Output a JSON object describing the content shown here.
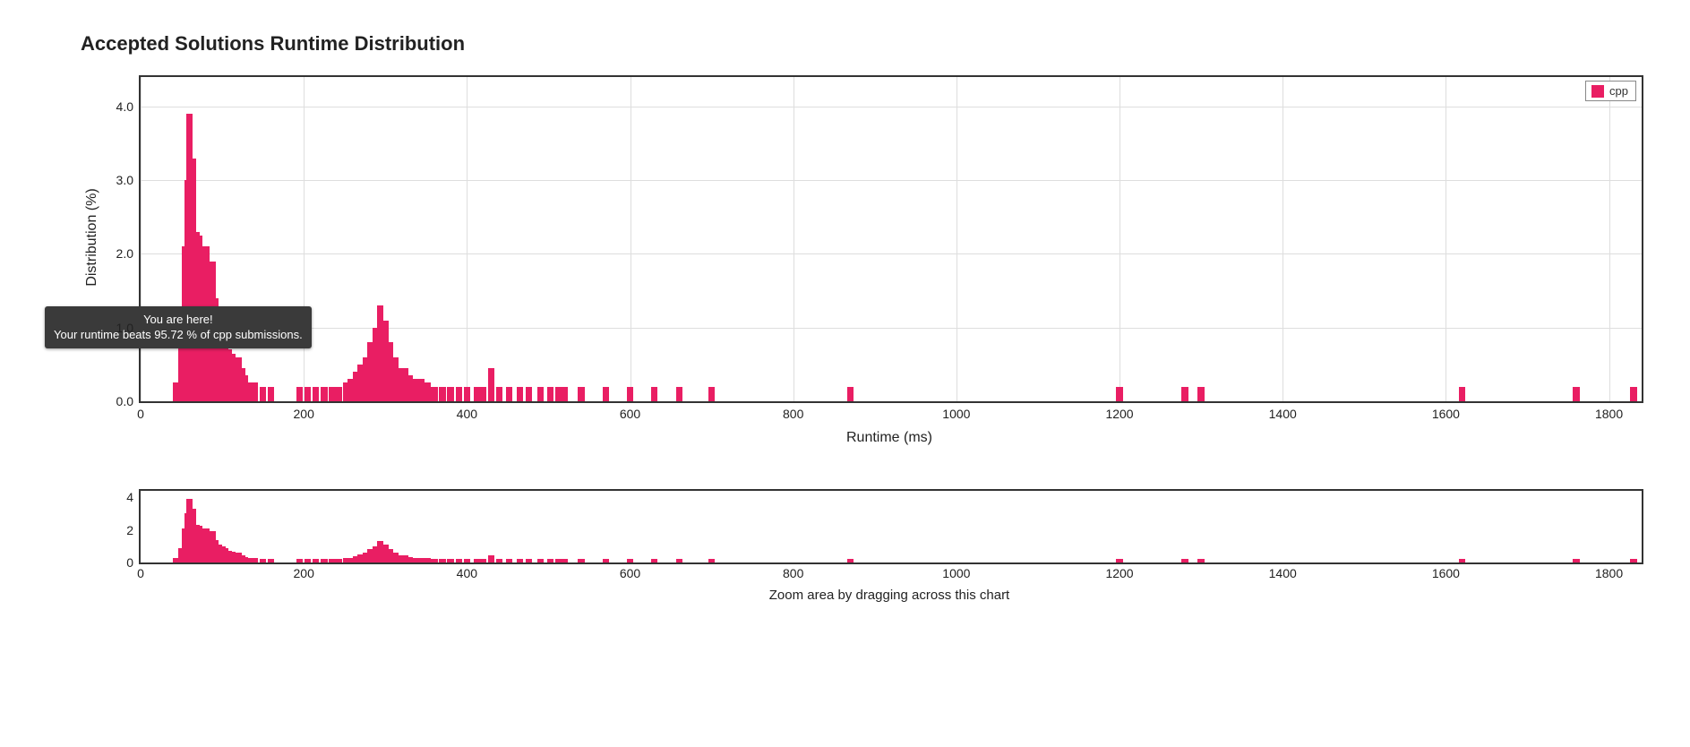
{
  "title": "Accepted Solutions Runtime Distribution",
  "tooltip": {
    "line1": "You are here!",
    "line2": "Your runtime beats 95.72 % of cpp submissions.",
    "at_runtime_ms": 60
  },
  "legend": {
    "label": "cpp",
    "swatch_color": "#e91e63"
  },
  "main_chart": {
    "type": "bar",
    "x_label": "Runtime (ms)",
    "y_label": "Distribution (%)",
    "xlim": [
      0,
      1840
    ],
    "ylim": [
      0,
      4.4
    ],
    "x_ticks": [
      0,
      200,
      400,
      600,
      800,
      1000,
      1200,
      1400,
      1600,
      1800
    ],
    "y_ticks": [
      0.0,
      1.0,
      2.0,
      3.0,
      4.0
    ],
    "grid_color": "#dedede",
    "border_color": "#333333",
    "bar_color": "#e91e63",
    "bar_width_ms": 8,
    "background_color": "#ffffff",
    "label_fontsize": 16,
    "tick_fontsize": 14,
    "data": [
      {
        "x": 44,
        "y": 0.25
      },
      {
        "x": 50,
        "y": 0.9
      },
      {
        "x": 54,
        "y": 2.1
      },
      {
        "x": 58,
        "y": 3.0
      },
      {
        "x": 60,
        "y": 3.9
      },
      {
        "x": 64,
        "y": 3.3
      },
      {
        "x": 68,
        "y": 2.3
      },
      {
        "x": 72,
        "y": 2.25
      },
      {
        "x": 76,
        "y": 1.7
      },
      {
        "x": 80,
        "y": 2.1
      },
      {
        "x": 84,
        "y": 1.5
      },
      {
        "x": 88,
        "y": 1.9
      },
      {
        "x": 92,
        "y": 1.4
      },
      {
        "x": 96,
        "y": 1.1
      },
      {
        "x": 100,
        "y": 1.0
      },
      {
        "x": 104,
        "y": 0.9
      },
      {
        "x": 108,
        "y": 0.7
      },
      {
        "x": 112,
        "y": 0.65
      },
      {
        "x": 116,
        "y": 0.5
      },
      {
        "x": 120,
        "y": 0.6
      },
      {
        "x": 124,
        "y": 0.45
      },
      {
        "x": 128,
        "y": 0.35
      },
      {
        "x": 132,
        "y": 0.25
      },
      {
        "x": 140,
        "y": 0.25
      },
      {
        "x": 150,
        "y": 0.2
      },
      {
        "x": 160,
        "y": 0.2
      },
      {
        "x": 195,
        "y": 0.2
      },
      {
        "x": 205,
        "y": 0.2
      },
      {
        "x": 215,
        "y": 0.2
      },
      {
        "x": 225,
        "y": 0.2
      },
      {
        "x": 235,
        "y": 0.2
      },
      {
        "x": 243,
        "y": 0.2
      },
      {
        "x": 252,
        "y": 0.25
      },
      {
        "x": 258,
        "y": 0.3
      },
      {
        "x": 264,
        "y": 0.4
      },
      {
        "x": 270,
        "y": 0.5
      },
      {
        "x": 276,
        "y": 0.6
      },
      {
        "x": 282,
        "y": 0.8
      },
      {
        "x": 288,
        "y": 1.0
      },
      {
        "x": 294,
        "y": 1.3
      },
      {
        "x": 300,
        "y": 1.1
      },
      {
        "x": 306,
        "y": 0.8
      },
      {
        "x": 312,
        "y": 0.6
      },
      {
        "x": 318,
        "y": 0.45
      },
      {
        "x": 324,
        "y": 0.45
      },
      {
        "x": 330,
        "y": 0.35
      },
      {
        "x": 336,
        "y": 0.3
      },
      {
        "x": 344,
        "y": 0.3
      },
      {
        "x": 352,
        "y": 0.25
      },
      {
        "x": 360,
        "y": 0.2
      },
      {
        "x": 370,
        "y": 0.2
      },
      {
        "x": 380,
        "y": 0.2
      },
      {
        "x": 390,
        "y": 0.2
      },
      {
        "x": 400,
        "y": 0.2
      },
      {
        "x": 412,
        "y": 0.2
      },
      {
        "x": 420,
        "y": 0.2
      },
      {
        "x": 430,
        "y": 0.45
      },
      {
        "x": 440,
        "y": 0.2
      },
      {
        "x": 452,
        "y": 0.2
      },
      {
        "x": 465,
        "y": 0.2
      },
      {
        "x": 476,
        "y": 0.2
      },
      {
        "x": 490,
        "y": 0.2
      },
      {
        "x": 502,
        "y": 0.2
      },
      {
        "x": 512,
        "y": 0.2
      },
      {
        "x": 520,
        "y": 0.2
      },
      {
        "x": 540,
        "y": 0.2
      },
      {
        "x": 570,
        "y": 0.2
      },
      {
        "x": 600,
        "y": 0.2
      },
      {
        "x": 630,
        "y": 0.2
      },
      {
        "x": 660,
        "y": 0.2
      },
      {
        "x": 700,
        "y": 0.2
      },
      {
        "x": 870,
        "y": 0.2
      },
      {
        "x": 1200,
        "y": 0.2
      },
      {
        "x": 1280,
        "y": 0.2
      },
      {
        "x": 1300,
        "y": 0.2
      },
      {
        "x": 1620,
        "y": 0.2
      },
      {
        "x": 1760,
        "y": 0.2
      },
      {
        "x": 1830,
        "y": 0.2
      }
    ]
  },
  "mini_chart": {
    "type": "bar",
    "caption": "Zoom area by dragging across this chart",
    "xlim": [
      0,
      1840
    ],
    "ylim": [
      0,
      4.4
    ],
    "x_ticks": [
      0,
      200,
      400,
      600,
      800,
      1000,
      1200,
      1400,
      1600,
      1800
    ],
    "y_ticks": [
      0,
      2,
      4
    ],
    "border_color": "#333333",
    "bar_color": "#e91e63",
    "bar_width_ms": 8,
    "tick_fontsize": 14
  }
}
